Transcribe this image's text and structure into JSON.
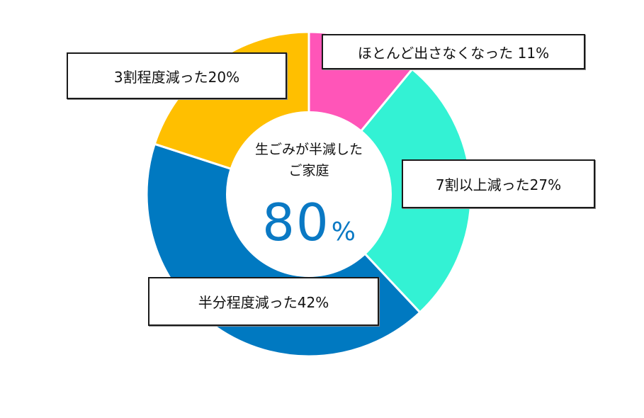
{
  "chart_data": {
    "type": "pie",
    "subtype": "donut",
    "title": "",
    "center_label": "生ごみが半減したご家庭",
    "center_value": 80,
    "center_unit": "%",
    "categories": [
      "ほとんど出さなくなった",
      "7割以上減った",
      "半分程度減った",
      "3割程度減った"
    ],
    "values": [
      11,
      27,
      42,
      20
    ],
    "colors": [
      "#ff55b8",
      "#33f2d4",
      "#0079c1",
      "#ffbf00"
    ],
    "legend_position": "callout boxes"
  },
  "labels": {
    "l1": "ほとんど出さなくなった 11%",
    "l2": "7割以上減った27%",
    "l3": "半分程度減った42%",
    "l4": "3割程度減った20%"
  },
  "center": {
    "line1": "生ごみが半減した",
    "line2": "ご家庭",
    "value": "80",
    "unit": "%"
  }
}
